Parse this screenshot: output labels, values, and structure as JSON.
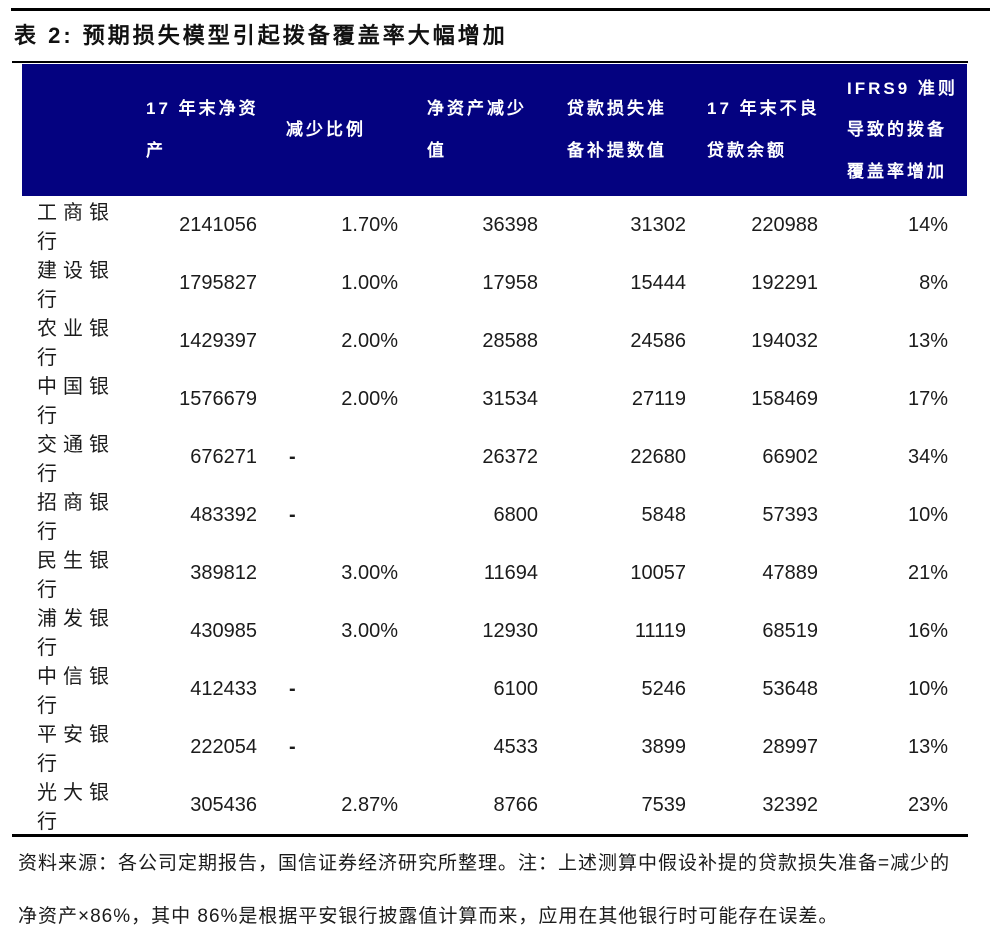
{
  "title": "表 2: 预期损失模型引起拨备覆盖率大幅增加",
  "colors": {
    "header_bg": "#040280",
    "rule": "#000000",
    "header_text": "#ffffff",
    "body_text": "#1b1b1b"
  },
  "table": {
    "columns": [
      {
        "label": ""
      },
      {
        "label": "17 年末净资\n产"
      },
      {
        "label": "减少比例"
      },
      {
        "label": "净资产减少\n值"
      },
      {
        "label": "贷款损失准\n备补提数值"
      },
      {
        "label": "17 年末不良\n贷款余额"
      },
      {
        "label": "IFRS9 准则\n导致的拨备\n覆盖率增加"
      }
    ],
    "rows": [
      [
        "工商银行",
        "2141056",
        "1.70%",
        "36398",
        "31302",
        "220988",
        "14%"
      ],
      [
        "建设银行",
        "1795827",
        "1.00%",
        "17958",
        "15444",
        "192291",
        "8%"
      ],
      [
        "农业银行",
        "1429397",
        "2.00%",
        "28588",
        "24586",
        "194032",
        "13%"
      ],
      [
        "中国银行",
        "1576679",
        "2.00%",
        "31534",
        "27119",
        "158469",
        "17%"
      ],
      [
        "交通银行",
        "676271",
        "-",
        "26372",
        "22680",
        "66902",
        "34%"
      ],
      [
        "招商银行",
        "483392",
        "-",
        "6800",
        "5848",
        "57393",
        "10%"
      ],
      [
        "民生银行",
        "389812",
        "3.00%",
        "11694",
        "10057",
        "47889",
        "21%"
      ],
      [
        "浦发银行",
        "430985",
        "3.00%",
        "12930",
        "11119",
        "68519",
        "16%"
      ],
      [
        "中信银行",
        "412433",
        "-",
        "6100",
        "5246",
        "53648",
        "10%"
      ],
      [
        "平安银行",
        "222054",
        "-",
        "4533",
        "3899",
        "28997",
        "13%"
      ],
      [
        "光大银行",
        "305436",
        "2.87%",
        "8766",
        "7539",
        "32392",
        "23%"
      ]
    ]
  },
  "footnote": {
    "text": "资料来源：各公司定期报告，国信证券经济研究所整理。注：上述测算中假设补提的贷款损失准备=减少的\n净资产×86%，其中 86%是根据平安银行披露值计算而来，应用在其他银行时可能存在误差。"
  }
}
